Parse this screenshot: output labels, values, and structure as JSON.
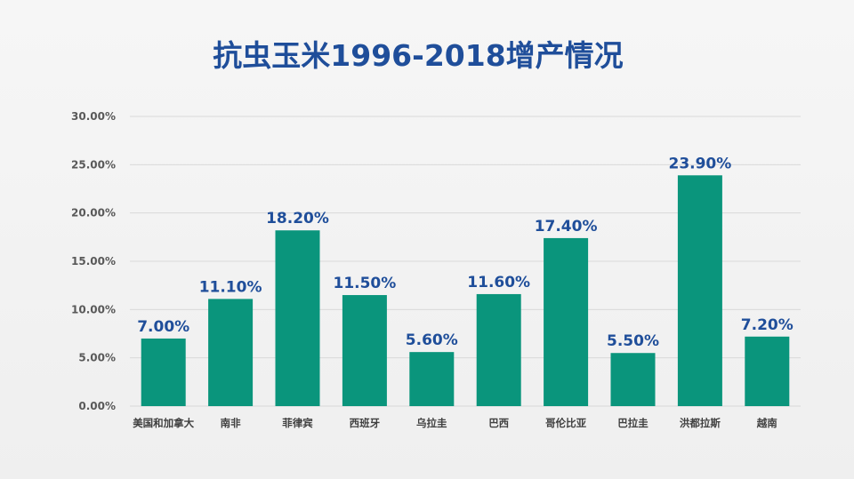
{
  "title": "抗虫玉米1996-2018增产情况",
  "colors": {
    "bar": "#0a957c",
    "data_label": "#1f4e9a",
    "title": "#1f4e9a",
    "grid": "#d9d9d9"
  },
  "chart_data": {
    "type": "bar",
    "title": "抗虫玉米1996-2018增产情况",
    "categories": [
      "美国和加拿大",
      "南非",
      "菲律宾",
      "西班牙",
      "乌拉圭",
      "巴西",
      "哥伦比亚",
      "巴拉圭",
      "洪都拉斯",
      "越南"
    ],
    "values": [
      7.0,
      11.1,
      18.2,
      11.5,
      5.6,
      11.6,
      17.4,
      5.5,
      23.9,
      7.2
    ],
    "value_labels": [
      "7.00%",
      "11.10%",
      "18.20%",
      "11.50%",
      "5.60%",
      "11.60%",
      "17.40%",
      "5.50%",
      "23.90%",
      "7.20%"
    ],
    "y_ticks": [
      0,
      5,
      10,
      15,
      20,
      25,
      30
    ],
    "y_tick_labels": [
      "0.00%",
      "5.00%",
      "10.00%",
      "15.00%",
      "20.00%",
      "25.00%",
      "30.00%"
    ],
    "ylim": [
      0,
      30
    ],
    "xlabel": "",
    "ylabel": "",
    "grid": true,
    "legend": "none"
  }
}
